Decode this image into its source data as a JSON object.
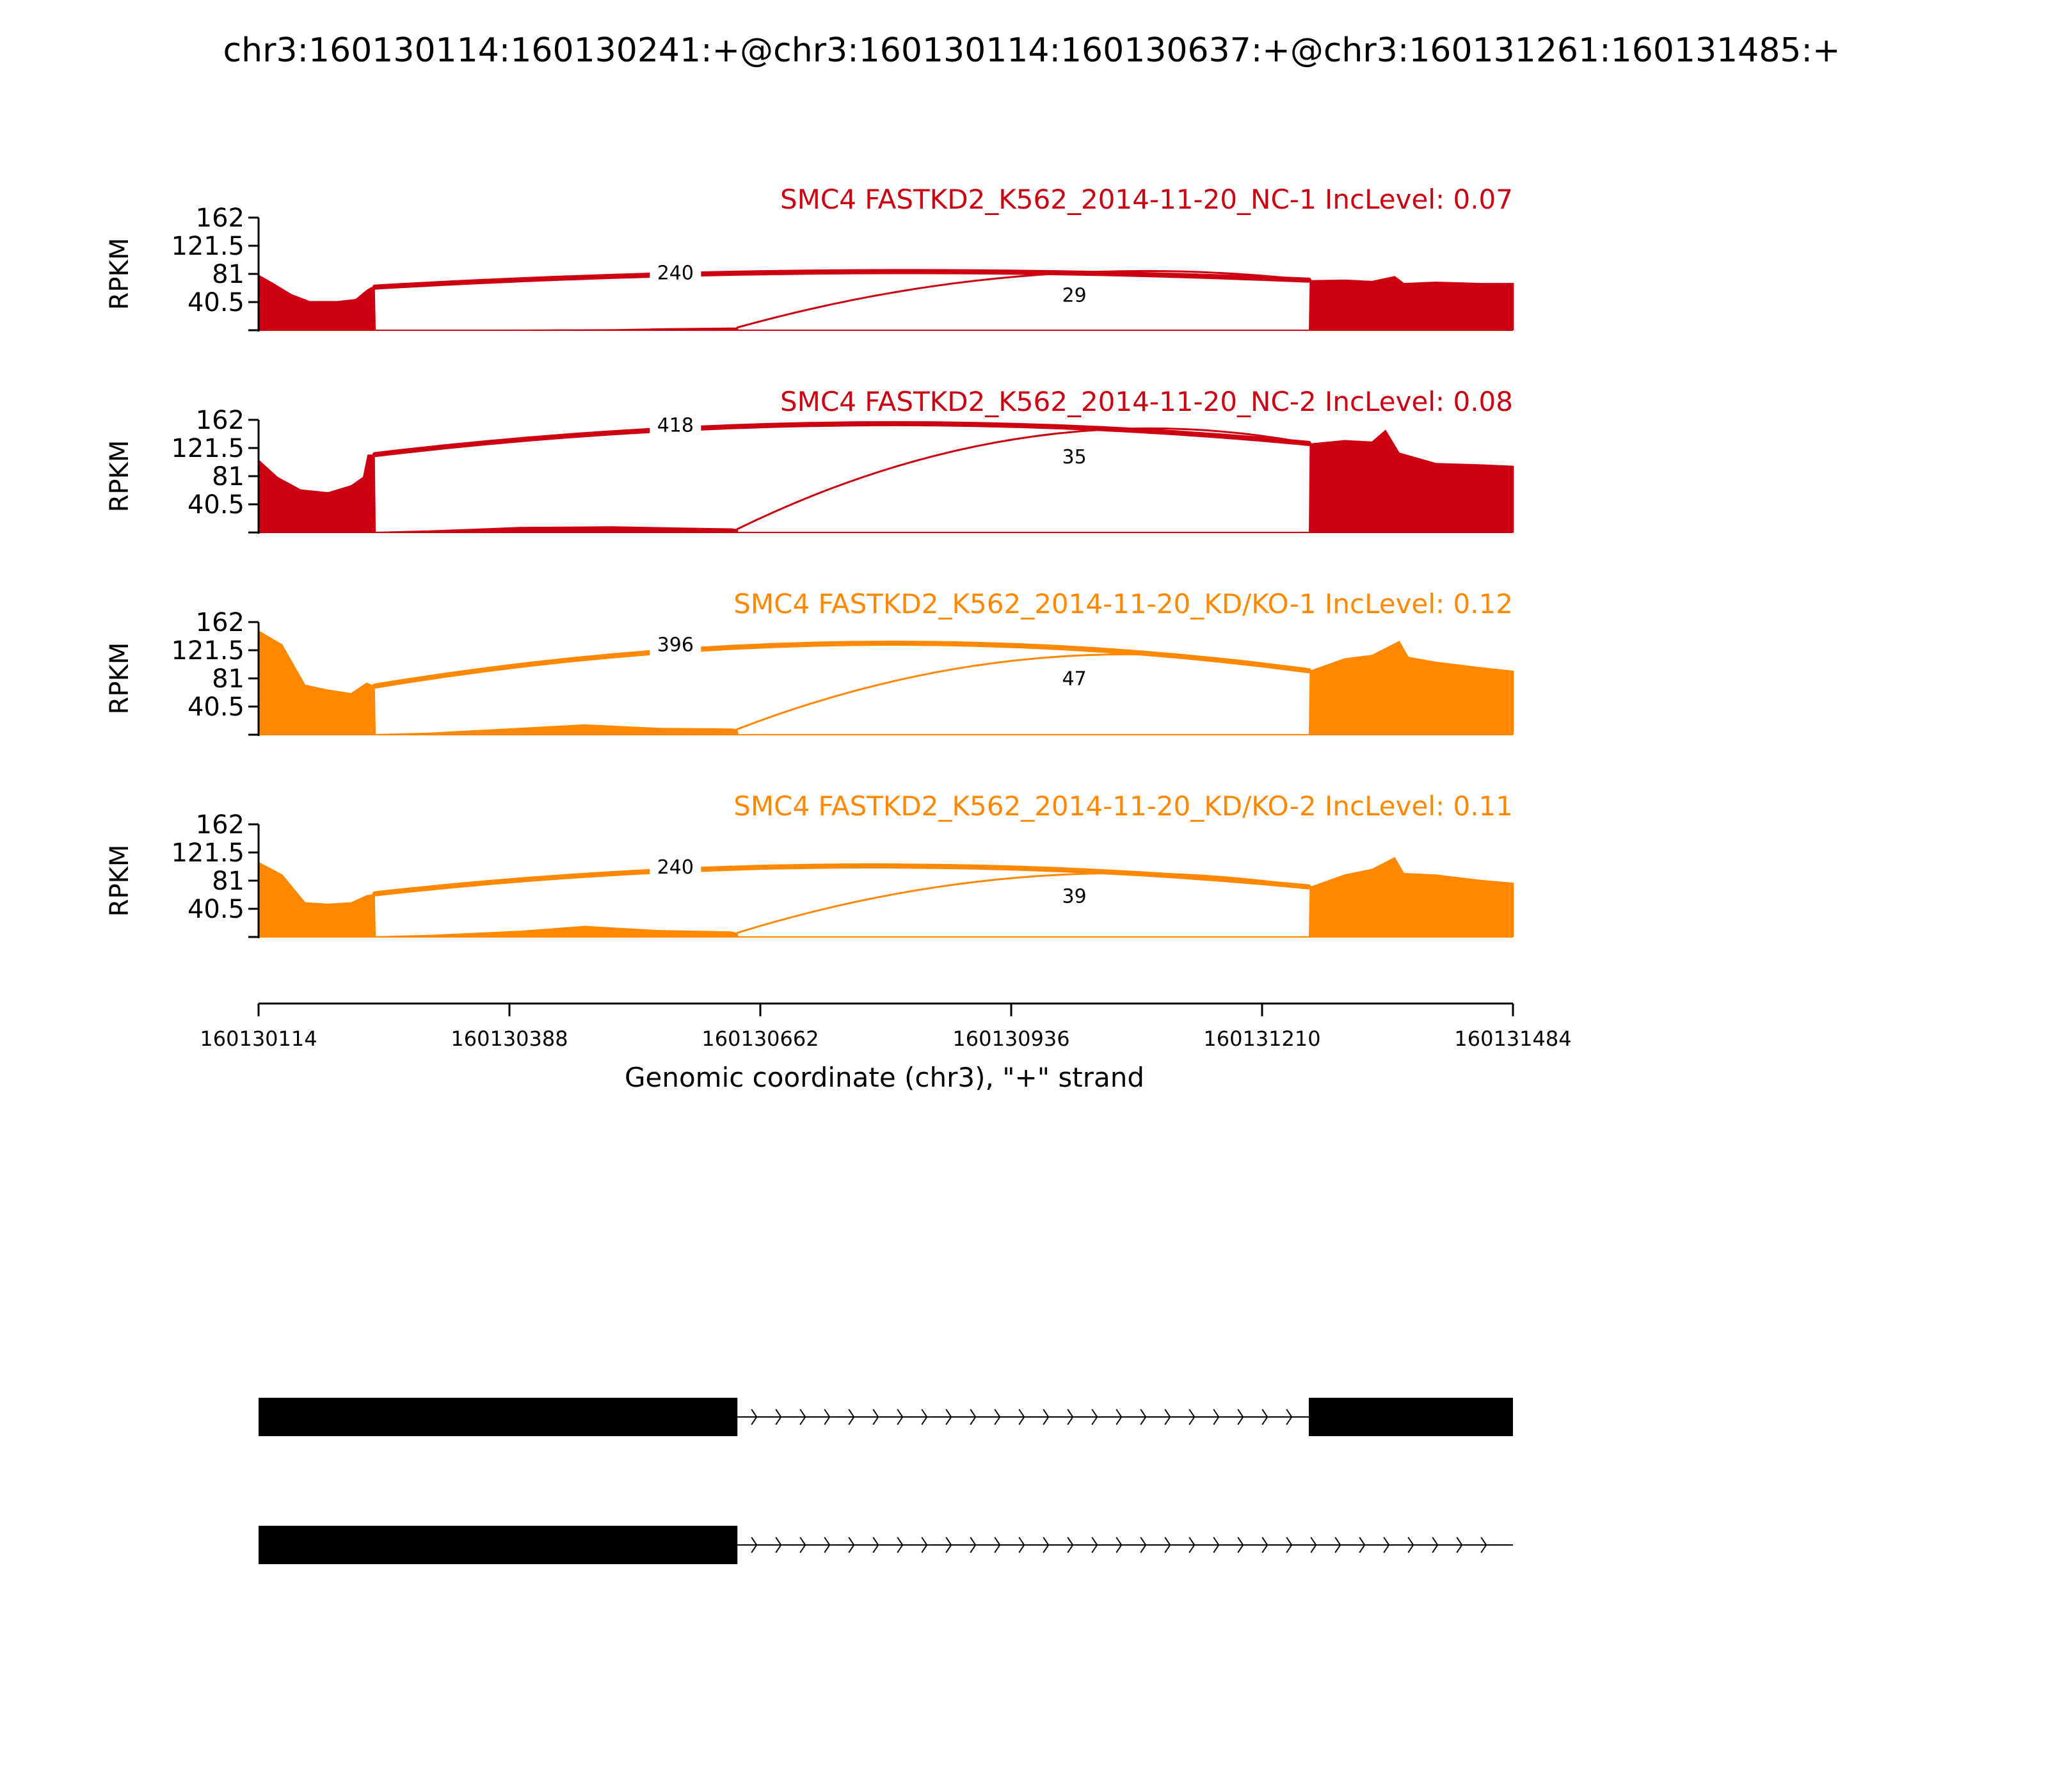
{
  "chart_data": {
    "type": "area",
    "title": "chr3:160130114:160130241:+@chr3:160130114:160130637:+@chr3:160131261:160131485:+",
    "xlabel": "Genomic coordinate (chr3), \"+\" strand",
    "xlim": [
      160130114,
      160131484
    ],
    "x_ticks": [
      "160130114",
      "160130388",
      "160130662",
      "160130936",
      "160131210",
      "160131484"
    ],
    "ylabel": "RPKM",
    "ylim": [
      0,
      162
    ],
    "y_ticks": [
      "162",
      "121.5",
      "81",
      "40.5"
    ],
    "colors": {
      "NC": "#cc0011",
      "KD": "#ff8800",
      "structure": "#000000"
    },
    "series": [
      {
        "name": "SMC4 FASTKD2_K562_2014-11-20_NC-1 IncLevel: 0.07",
        "color": "#cc0011",
        "coverage": [
          [
            160130114,
            80
          ],
          [
            160130130,
            68
          ],
          [
            160130150,
            52
          ],
          [
            160130170,
            42
          ],
          [
            160130200,
            42
          ],
          [
            160130220,
            45
          ],
          [
            160130232,
            58
          ],
          [
            160130237,
            62
          ],
          [
            160130241,
            62
          ],
          [
            160130242,
            0.5
          ],
          [
            160130400,
            1
          ],
          [
            160130500,
            1.5
          ],
          [
            160130560,
            3
          ],
          [
            160130630,
            4
          ],
          [
            160130637,
            4
          ],
          [
            160130638,
            1
          ],
          [
            160131200,
            0.5
          ],
          [
            160131261,
            0.5
          ],
          [
            160131262,
            72
          ],
          [
            160131300,
            73
          ],
          [
            160131330,
            71
          ],
          [
            160131355,
            78
          ],
          [
            160131365,
            68
          ],
          [
            160131400,
            70
          ],
          [
            160131450,
            68
          ],
          [
            160131485,
            68
          ]
        ],
        "junctions": [
          {
            "from": 160130241,
            "to": 160131261,
            "count": "240",
            "peak": 84
          },
          {
            "from": 160130637,
            "to": 160131261,
            "count": "29",
            "peak": 78
          }
        ]
      },
      {
        "name": "SMC4 FASTKD2_K562_2014-11-20_NC-2 IncLevel: 0.08",
        "color": "#cc0011",
        "coverage": [
          [
            160130114,
            105
          ],
          [
            160130135,
            80
          ],
          [
            160130160,
            62
          ],
          [
            160130190,
            58
          ],
          [
            160130215,
            68
          ],
          [
            160130228,
            80
          ],
          [
            160130233,
            112
          ],
          [
            160130241,
            112
          ],
          [
            160130242,
            1
          ],
          [
            160130300,
            3
          ],
          [
            160130400,
            8
          ],
          [
            160130500,
            9
          ],
          [
            160130580,
            7
          ],
          [
            160130630,
            6
          ],
          [
            160130637,
            5
          ],
          [
            160130638,
            1
          ],
          [
            160131261,
            1
          ],
          [
            160131262,
            128
          ],
          [
            160131300,
            133
          ],
          [
            160131330,
            131
          ],
          [
            160131345,
            148
          ],
          [
            160131360,
            115
          ],
          [
            160131400,
            100
          ],
          [
            160131450,
            98
          ],
          [
            160131485,
            96
          ]
        ],
        "junctions": [
          {
            "from": 160130241,
            "to": 160131261,
            "count": "418",
            "peak": 156
          },
          {
            "from": 160130637,
            "to": 160131261,
            "count": "35",
            "peak": 136
          }
        ]
      },
      {
        "name": "SMC4 FASTKD2_K562_2014-11-20_KD/KO-1 IncLevel: 0.12",
        "color": "#ff8800",
        "coverage": [
          [
            160130114,
            150
          ],
          [
            160130140,
            130
          ],
          [
            160130165,
            72
          ],
          [
            160130190,
            65
          ],
          [
            160130215,
            60
          ],
          [
            160130232,
            75
          ],
          [
            160130241,
            70
          ],
          [
            160130242,
            1
          ],
          [
            160130300,
            3
          ],
          [
            160130400,
            10
          ],
          [
            160130470,
            15
          ],
          [
            160130550,
            10
          ],
          [
            160130630,
            9
          ],
          [
            160130637,
            8
          ],
          [
            160130638,
            1
          ],
          [
            160131261,
            1
          ],
          [
            160131262,
            92
          ],
          [
            160131300,
            110
          ],
          [
            160131330,
            115
          ],
          [
            160131360,
            135
          ],
          [
            160131370,
            112
          ],
          [
            160131400,
            105
          ],
          [
            160131450,
            97
          ],
          [
            160131485,
            92
          ]
        ],
        "junctions": [
          {
            "from": 160130241,
            "to": 160131261,
            "count": "396",
            "peak": 131
          },
          {
            "from": 160130637,
            "to": 160131261,
            "count": "47",
            "peak": 108
          }
        ]
      },
      {
        "name": "SMC4 FASTKD2_K562_2014-11-20_KD/KO-2 IncLevel: 0.11",
        "color": "#ff8800",
        "coverage": [
          [
            160130114,
            108
          ],
          [
            160130140,
            90
          ],
          [
            160130165,
            50
          ],
          [
            160130190,
            48
          ],
          [
            160130215,
            50
          ],
          [
            160130232,
            60
          ],
          [
            160130241,
            62
          ],
          [
            160130242,
            1
          ],
          [
            160130300,
            3
          ],
          [
            160130400,
            9
          ],
          [
            160130470,
            16
          ],
          [
            160130550,
            10
          ],
          [
            160130630,
            8
          ],
          [
            160130637,
            6
          ],
          [
            160130638,
            1
          ],
          [
            160131261,
            1
          ],
          [
            160131262,
            72
          ],
          [
            160131300,
            90
          ],
          [
            160131330,
            98
          ],
          [
            160131355,
            115
          ],
          [
            160131365,
            92
          ],
          [
            160131400,
            90
          ],
          [
            160131450,
            82
          ],
          [
            160131485,
            78
          ]
        ],
        "junctions": [
          {
            "from": 160130241,
            "to": 160131261,
            "count": "240",
            "peak": 102
          },
          {
            "from": 160130637,
            "to": 160131261,
            "count": "39",
            "peak": 86
          }
        ]
      }
    ],
    "isoforms": [
      {
        "exons": [
          [
            160130114,
            160130637
          ],
          [
            160131261,
            160131485
          ]
        ]
      },
      {
        "exons": [
          [
            160130114,
            160130637
          ]
        ]
      }
    ]
  }
}
